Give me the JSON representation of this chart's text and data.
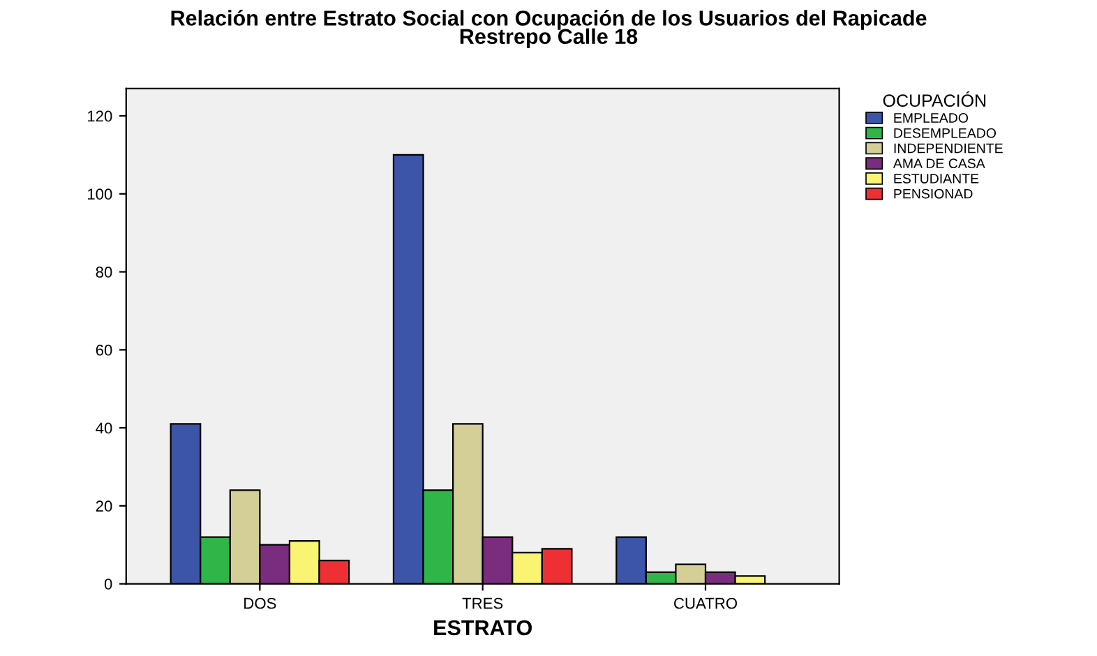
{
  "chart_data": {
    "type": "bar",
    "title": "Relación entre Estrato Social con Ocupación de los Usuarios del Rapicade\nRestrepo Calle 18",
    "xlabel": "ESTRATO",
    "legend_title": "OCUPACIÓN",
    "categories": [
      "DOS",
      "TRES",
      "CUATRO"
    ],
    "series": [
      {
        "name": "EMPLEADO",
        "color": "#3c55a8",
        "values": [
          41,
          110,
          12
        ]
      },
      {
        "name": "DESEMPLEADO",
        "color": "#2fb548",
        "values": [
          12,
          24,
          3
        ]
      },
      {
        "name": "INDEPENDIENTE",
        "color": "#d3cf97",
        "values": [
          24,
          41,
          5
        ]
      },
      {
        "name": "AMA DE CASA",
        "color": "#7a2c7f",
        "values": [
          10,
          12,
          3
        ]
      },
      {
        "name": "ESTUDIANTE",
        "color": "#f9f471",
        "values": [
          11,
          8,
          2
        ]
      },
      {
        "name": "PENSIONAD",
        "color": "#ee3034",
        "values": [
          6,
          9,
          null
        ]
      }
    ],
    "ylim": [
      0,
      127
    ],
    "yticks": [
      0,
      20,
      40,
      60,
      80,
      100,
      120
    ],
    "grid": false,
    "legend": "right"
  }
}
